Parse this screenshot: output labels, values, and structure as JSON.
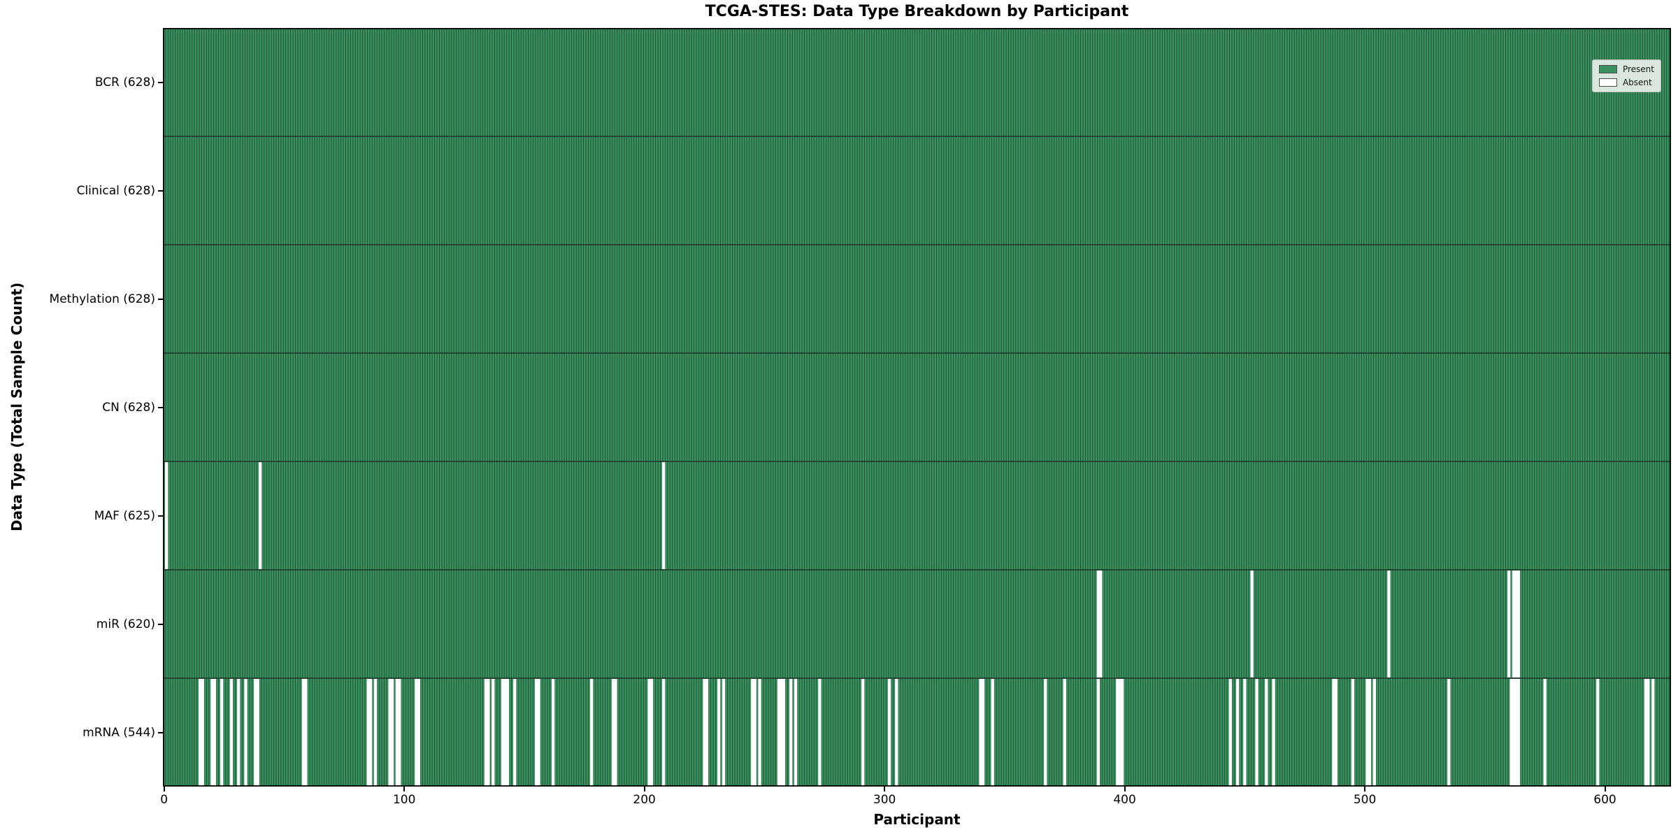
{
  "colors": {
    "present_fill": "#3a915f",
    "bar_edge": "#1b4d30",
    "absent_fill": "#ffffff",
    "row_boundary": "#1a1a1a",
    "plot_frame": "#000000"
  },
  "chart_data": {
    "type": "heatmap",
    "title": "TCGA-STES: Data Type Breakdown by Participant",
    "xlabel": "Participant",
    "ylabel": "Data Type (Total Sample Count)",
    "x_ticks": [
      0,
      100,
      200,
      300,
      400,
      500,
      600
    ],
    "n_participants": 628,
    "grid": false,
    "legend_position": "upper right",
    "legend": [
      {
        "label": "Present",
        "color": "#3a915f"
      },
      {
        "label": "Absent",
        "color": "#ffffff"
      }
    ],
    "rows": [
      {
        "label": "BCR (628)",
        "name": "BCR",
        "present_count": 628,
        "absent_participants": []
      },
      {
        "label": "Clinical (628)",
        "name": "Clinical",
        "present_count": 628,
        "absent_participants": []
      },
      {
        "label": "Methylation (628)",
        "name": "Methylation",
        "present_count": 628,
        "absent_participants": []
      },
      {
        "label": "CN (628)",
        "name": "CN",
        "present_count": 628,
        "absent_participants": []
      },
      {
        "label": "MAF (625)",
        "name": "MAF",
        "present_count": 625,
        "absent_participants": [
          1,
          40,
          208
        ]
      },
      {
        "label": "miR (620)",
        "name": "miR",
        "present_count": 620,
        "absent_participants": [
          389,
          390,
          453,
          510,
          560,
          562,
          563,
          564
        ]
      },
      {
        "label": "mRNA (544)",
        "name": "mRNA",
        "present_count": 544,
        "absent_participants": [
          15,
          16,
          20,
          21,
          24,
          28,
          31,
          34,
          38,
          39,
          58,
          59,
          85,
          86,
          88,
          94,
          95,
          97,
          98,
          105,
          106,
          134,
          135,
          137,
          141,
          142,
          143,
          146,
          155,
          156,
          162,
          178,
          187,
          188,
          202,
          203,
          208,
          225,
          226,
          231,
          233,
          245,
          246,
          248,
          256,
          257,
          258,
          261,
          263,
          273,
          291,
          302,
          305,
          340,
          341,
          345,
          367,
          375,
          389,
          397,
          398,
          399,
          444,
          447,
          450,
          455,
          459,
          462,
          487,
          488,
          495,
          501,
          502,
          504,
          535,
          561,
          562,
          563,
          564,
          575,
          597,
          617,
          618,
          620
        ]
      }
    ]
  }
}
